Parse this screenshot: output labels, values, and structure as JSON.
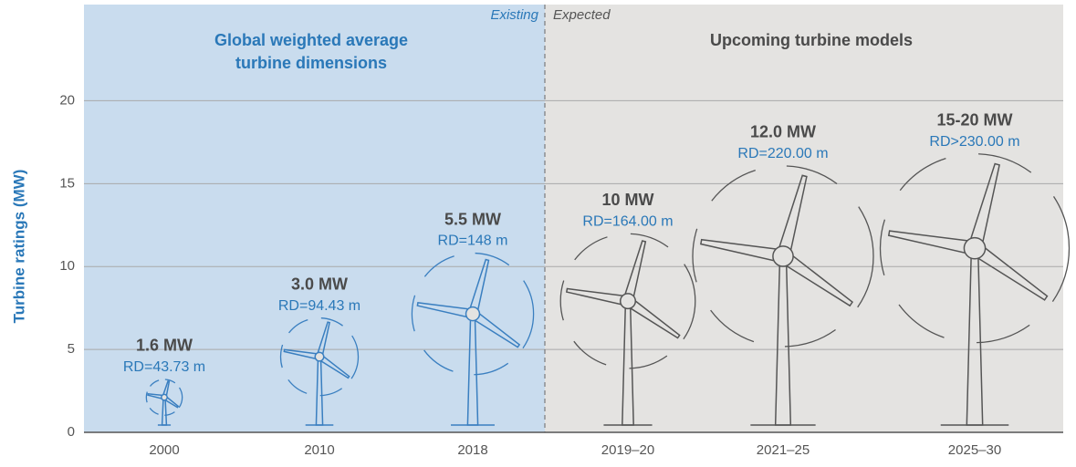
{
  "chart_data": {
    "type": "turbines",
    "y_axis_label": "Turbine ratings (MW)",
    "ylim": [
      0,
      25.8
    ],
    "yticks": [
      0,
      5,
      10,
      15,
      20
    ],
    "grid": true,
    "existing_label": "Existing",
    "expected_label": "Expected",
    "existing_title": [
      "Global weighted average",
      "turbine dimensions"
    ],
    "expected_title": "Upcoming turbine models",
    "existing_color": "#c9dcee",
    "expected_color": "#e4e3e1",
    "categories": [
      "2000",
      "2010",
      "2018",
      "2019–20",
      "2021–25",
      "2025–30"
    ],
    "ratings": [
      "1.6 MW",
      "3.0 MW",
      "5.5 MW",
      "10 MW",
      "12.0 MW",
      "15-20 MW"
    ],
    "rotor_diameters": [
      43.73,
      94.43,
      148,
      164.0,
      220.0,
      230.0
    ],
    "rotor_diameter_labels": [
      "RD=43.73 m",
      "RD=94.43 m",
      "RD=148 m",
      "RD=164.00 m",
      "RD=220.00 m",
      "RD>230.00 m"
    ],
    "turbine_colors": [
      "#3a7fc0",
      "#3a7fc0",
      "#3a7fc0",
      "#555555",
      "#555555",
      "#555555"
    ]
  }
}
